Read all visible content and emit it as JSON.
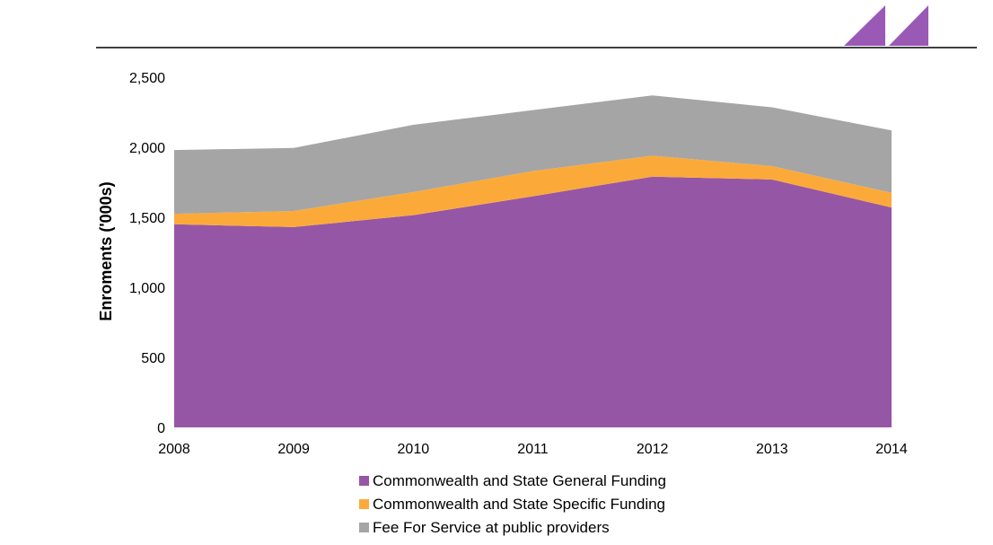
{
  "page": {
    "logo_icon": "double-triangle-logo-icon",
    "logo_color": "#9B59B6",
    "header_rule_color": "#000000"
  },
  "chart_data": {
    "type": "area",
    "stacked": true,
    "title": "",
    "xlabel": "",
    "ylabel": "Enroments ('000s)",
    "x": [
      "2008",
      "2009",
      "2010",
      "2011",
      "2012",
      "2013",
      "2014"
    ],
    "ylim": [
      0,
      2500
    ],
    "yticks": [
      0,
      500,
      1000,
      1500,
      2000,
      2500
    ],
    "ytick_labels": [
      "0",
      "500",
      "1,000",
      "1,500",
      "2,000",
      "2,500"
    ],
    "grid": false,
    "legend_position": "bottom",
    "series": [
      {
        "name": "Commonwealth and State General Funding",
        "color": "#9656A6",
        "values": [
          1450,
          1430,
          1515,
          1650,
          1790,
          1770,
          1570
        ]
      },
      {
        "name": "Commonwealth and State Specific Funding",
        "color": "#FBAA3A",
        "values": [
          75,
          115,
          165,
          180,
          150,
          95,
          105
        ]
      },
      {
        "name": "Fee For Service at public providers",
        "color": "#A5A5A5",
        "values": [
          455,
          450,
          480,
          435,
          430,
          420,
          445
        ]
      }
    ]
  }
}
